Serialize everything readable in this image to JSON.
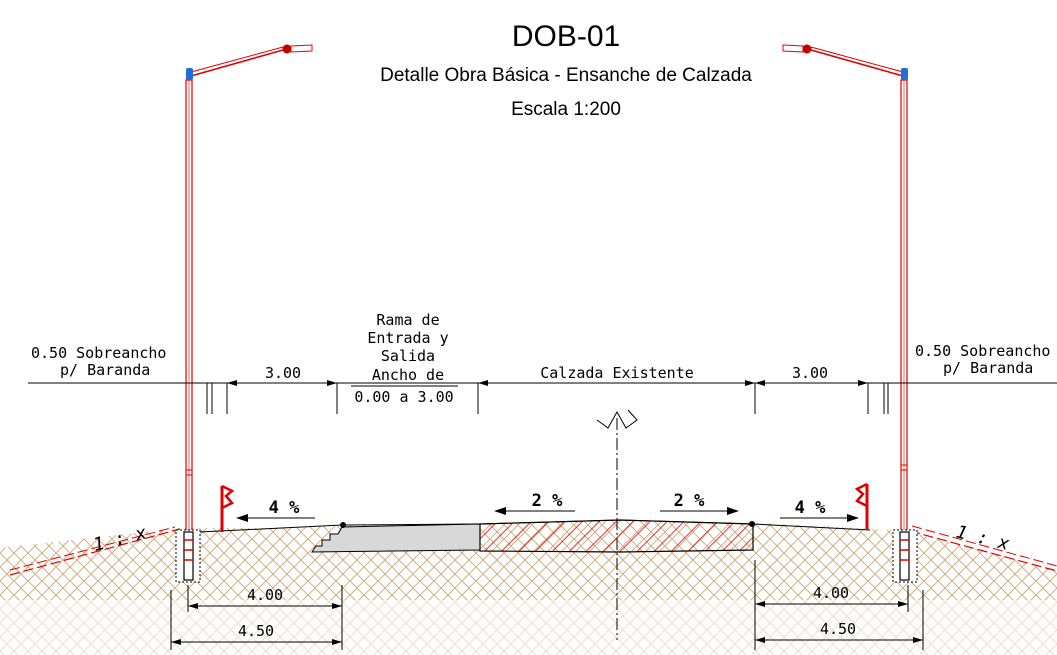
{
  "title": "DOB-01",
  "subtitle": "Detalle Obra Básica - Ensanche de Calzada",
  "scale": "Escala 1:200",
  "labels": {
    "left_sobreancho_1": "0.50 Sobreancho",
    "left_sobreancho_2": "p/ Baranda",
    "right_sobreancho_1": "0.50 Sobreancho",
    "right_sobreancho_2": "p/ Baranda",
    "left_width": "3.00",
    "right_width": "3.00",
    "rama_1": "Rama de",
    "rama_2": "Entrada y",
    "rama_3": "Salida",
    "rama_4": "Ancho de",
    "rama_5": "0.00 a 3.00",
    "calzada": "Calzada Existente",
    "slope_left_outer": "4 %",
    "slope_left_inner": "2 %",
    "slope_right_inner": "2 %",
    "slope_right_outer": "4 %",
    "ratio_left": "1 : x",
    "ratio_right": "1 : x",
    "dim_left_inner": "4.00",
    "dim_left_outer": "4.50",
    "dim_right_inner": "4.00",
    "dim_right_outer": "4.50"
  },
  "colors": {
    "lines": "#000000",
    "poles": "#e00000",
    "lamp": "#c00000",
    "lamp_cap": "#1e6fd9",
    "pavement_existing_hatch": "#e00000",
    "pavement_new_fill": "#d8d8d8",
    "soil_hatch": "#c8a06a"
  }
}
